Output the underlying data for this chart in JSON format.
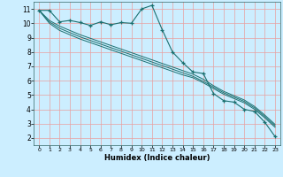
{
  "xlabel": "Humidex (Indice chaleur)",
  "bg_color": "#cceeff",
  "grid_color": "#e8a0a0",
  "line_color": "#1a7070",
  "xlim": [
    -0.5,
    23.5
  ],
  "ylim": [
    1.5,
    11.5
  ],
  "xticks": [
    0,
    1,
    2,
    3,
    4,
    5,
    6,
    7,
    8,
    9,
    10,
    11,
    12,
    13,
    14,
    15,
    16,
    17,
    18,
    19,
    20,
    21,
    22,
    23
  ],
  "yticks": [
    2,
    3,
    4,
    5,
    6,
    7,
    8,
    9,
    10,
    11
  ],
  "main_x": [
    0,
    1,
    2,
    3,
    4,
    5,
    6,
    7,
    8,
    9,
    10,
    11,
    12,
    13,
    14,
    15,
    16,
    17,
    18,
    19,
    20,
    21,
    22,
    23
  ],
  "main_y": [
    10.9,
    10.9,
    10.1,
    10.2,
    10.05,
    9.85,
    10.1,
    9.9,
    10.05,
    10.0,
    11.0,
    11.25,
    9.55,
    8.0,
    7.25,
    6.6,
    6.5,
    5.1,
    4.6,
    4.5,
    4.0,
    3.85,
    3.1,
    2.1
  ],
  "line2_x": [
    0,
    1,
    2,
    3,
    4,
    5,
    6,
    7,
    8,
    9,
    10,
    11,
    12,
    13,
    14,
    15,
    16,
    17,
    18,
    19,
    20,
    21,
    22,
    23
  ],
  "line2_y": [
    10.9,
    10.0,
    9.5,
    9.2,
    8.9,
    8.65,
    8.4,
    8.15,
    7.9,
    7.65,
    7.4,
    7.15,
    6.9,
    6.65,
    6.4,
    6.2,
    5.85,
    5.45,
    5.05,
    4.75,
    4.45,
    4.0,
    3.4,
    2.75
  ],
  "line3_x": [
    0,
    1,
    2,
    3,
    4,
    5,
    6,
    7,
    8,
    9,
    10,
    11,
    12,
    13,
    14,
    15,
    16,
    17,
    18,
    19,
    20,
    21,
    22,
    23
  ],
  "line3_y": [
    10.9,
    10.1,
    9.65,
    9.35,
    9.05,
    8.8,
    8.55,
    8.3,
    8.05,
    7.8,
    7.55,
    7.3,
    7.05,
    6.8,
    6.55,
    6.3,
    5.95,
    5.55,
    5.15,
    4.85,
    4.55,
    4.1,
    3.5,
    2.85
  ],
  "line4_x": [
    0,
    1,
    2,
    3,
    4,
    5,
    6,
    7,
    8,
    9,
    10,
    11,
    12,
    13,
    14,
    15,
    16,
    17,
    18,
    19,
    20,
    21,
    22,
    23
  ],
  "line4_y": [
    10.9,
    10.2,
    9.8,
    9.5,
    9.2,
    8.95,
    8.7,
    8.45,
    8.2,
    7.95,
    7.7,
    7.45,
    7.2,
    6.95,
    6.7,
    6.45,
    6.1,
    5.65,
    5.25,
    4.95,
    4.65,
    4.2,
    3.6,
    2.95
  ]
}
